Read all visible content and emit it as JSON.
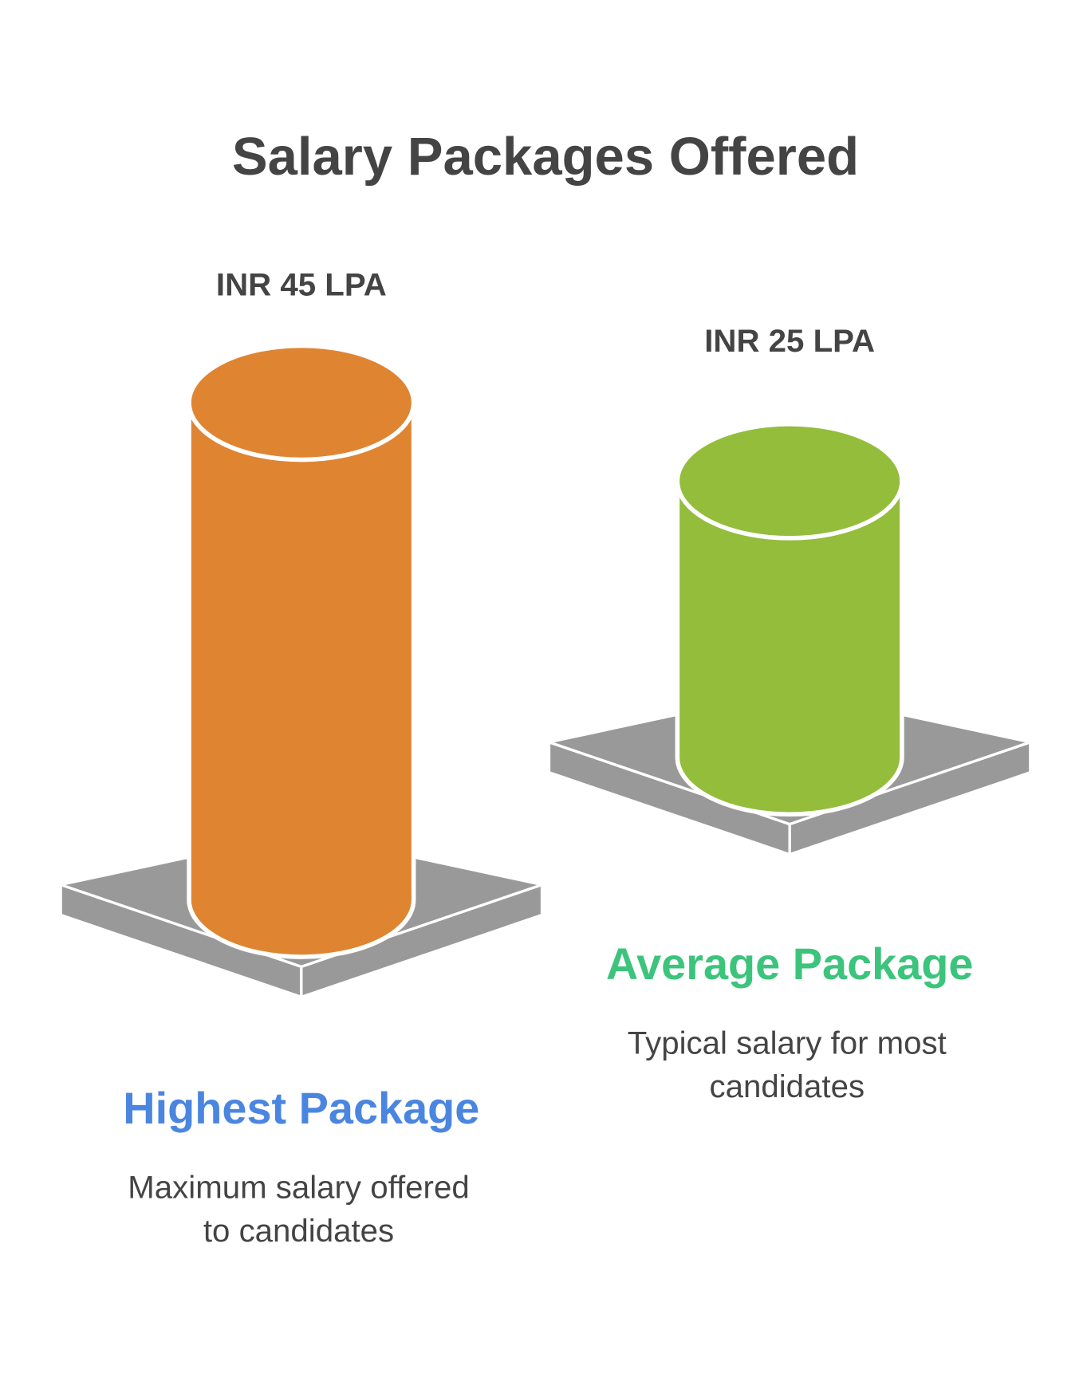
{
  "chart_data": {
    "type": "cylinder",
    "title": "Salary Packages Offered",
    "categories": [
      "Highest Package",
      "Average Package"
    ],
    "category_colors": [
      "#4a86e0",
      "#3cc47c"
    ],
    "descriptions": [
      [
        "Maximum salary offered",
        "to candidates"
      ],
      [
        "Typical salary for most",
        "candidates"
      ]
    ],
    "values": [
      45,
      25
    ],
    "value_labels": [
      "INR 45 LPA",
      "INR 25 LPA"
    ],
    "colors": [
      "#df8431",
      "#93bd3b"
    ]
  }
}
